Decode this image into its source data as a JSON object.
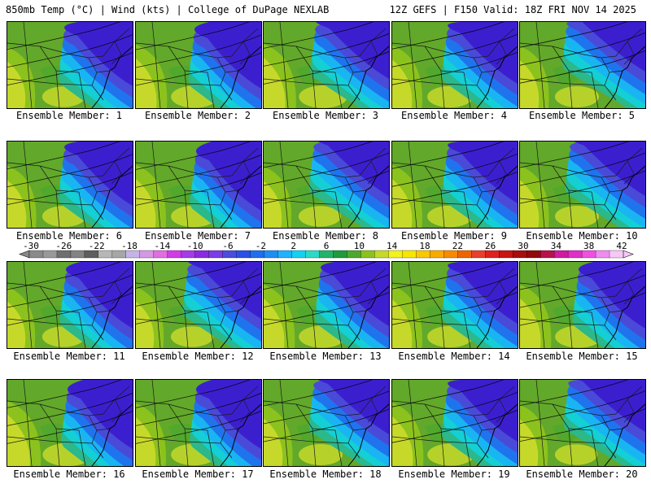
{
  "header": {
    "left": "850mb Temp (°C) | Wind (kts) | College of DuPage NEXLAB",
    "right": "12Z GEFS | F150 Valid: 18Z FRI NOV 14 2025"
  },
  "panels": [
    {
      "label": "Ensemble Member: 1",
      "cold": 0.55,
      "warm": 0.45
    },
    {
      "label": "Ensemble Member: 2",
      "cold": 0.5,
      "warm": 0.6
    },
    {
      "label": "Ensemble Member: 3",
      "cold": 0.7,
      "warm": 0.65
    },
    {
      "label": "Ensemble Member: 4",
      "cold": 0.6,
      "warm": 0.55
    },
    {
      "label": "Ensemble Member: 5",
      "cold": 0.85,
      "warm": 0.5
    },
    {
      "label": "Ensemble Member: 6",
      "cold": 0.55,
      "warm": 0.5
    },
    {
      "label": "Ensemble Member: 7",
      "cold": 0.45,
      "warm": 0.55
    },
    {
      "label": "Ensemble Member: 8",
      "cold": 0.75,
      "warm": 0.45
    },
    {
      "label": "Ensemble Member: 9",
      "cold": 0.6,
      "warm": 0.55
    },
    {
      "label": "Ensemble Member: 10",
      "cold": 0.75,
      "warm": 0.5
    },
    {
      "label": "Ensemble Member: 11",
      "cold": 0.5,
      "warm": 0.45
    },
    {
      "label": "Ensemble Member: 12",
      "cold": 0.7,
      "warm": 0.45
    },
    {
      "label": "Ensemble Member: 13",
      "cold": 0.55,
      "warm": 0.6
    },
    {
      "label": "Ensemble Member: 14",
      "cold": 0.6,
      "warm": 0.55
    },
    {
      "label": "Ensemble Member: 15",
      "cold": 0.5,
      "warm": 0.6
    },
    {
      "label": "Ensemble Member: 16",
      "cold": 0.45,
      "warm": 0.7
    },
    {
      "label": "Ensemble Member: 17",
      "cold": 0.45,
      "warm": 0.55
    },
    {
      "label": "Ensemble Member: 18",
      "cold": 0.75,
      "warm": 0.5
    },
    {
      "label": "Ensemble Member: 19",
      "cold": 0.6,
      "warm": 0.6
    },
    {
      "label": "Ensemble Member: 20",
      "cold": 0.8,
      "warm": 0.45
    }
  ],
  "colorbar": {
    "labels": [
      "-30",
      "-26",
      "-22",
      "-18",
      "-14",
      "-10",
      "-6",
      "-2",
      "2",
      "6",
      "10",
      "14",
      "18",
      "22",
      "26",
      "30",
      "34",
      "38",
      "42"
    ],
    "colors": [
      "#8a8a8a",
      "#999999",
      "#6f6f6f",
      "#838383",
      "#5e5e5e",
      "#b7b7b7",
      "#a6a6a6",
      "#c7b4e6",
      "#d597e6",
      "#e06fe0",
      "#d23ce8",
      "#a63ae6",
      "#8a2be2",
      "#7a3de6",
      "#4b4bdc",
      "#2a50e6",
      "#1e6ff0",
      "#1f8ef2",
      "#1fb2ff",
      "#12d2f0",
      "#2bd9c6",
      "#22b46a",
      "#1e9b3c",
      "#4ea82e",
      "#8cc21d",
      "#c6d92a",
      "#f2f21e",
      "#f7e600",
      "#f8c800",
      "#f9aa00",
      "#f88a00",
      "#f06400",
      "#e8402c",
      "#e02020",
      "#c81414",
      "#a80d0d",
      "#8f0a0a",
      "#b8124a",
      "#d01aa0",
      "#e030c8",
      "#f050e0",
      "#f08cf0",
      "#f6c8f6"
    ]
  }
}
